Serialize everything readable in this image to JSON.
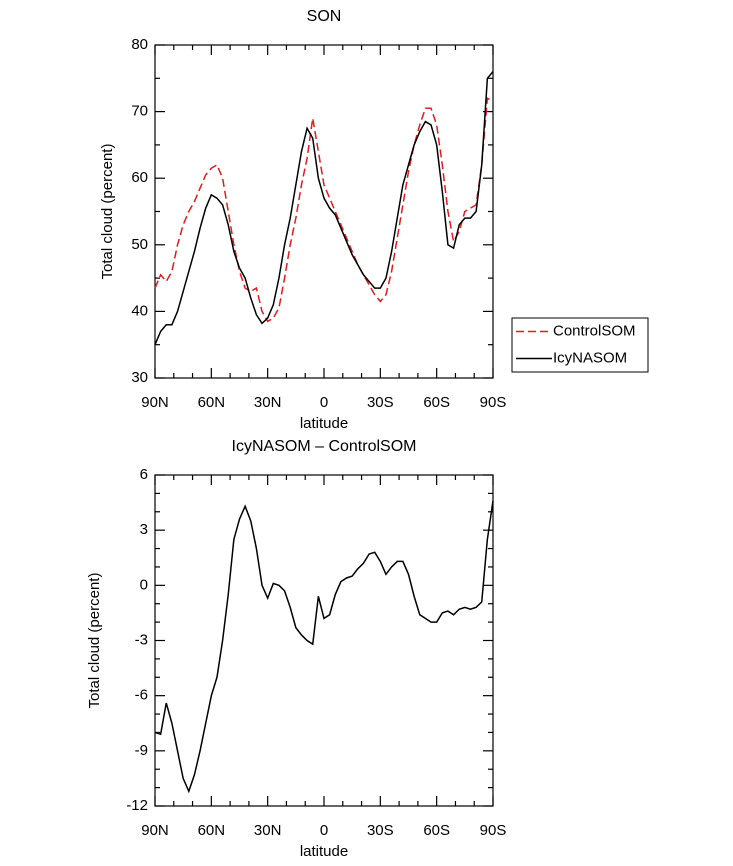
{
  "chart_data": [
    {
      "type": "line",
      "title": "SON",
      "xlabel": "latitude",
      "ylabel": "Total cloud (percent)",
      "x": [
        90,
        87,
        84,
        81,
        78,
        75,
        72,
        69,
        66,
        63,
        60,
        57,
        54,
        51,
        48,
        45,
        42,
        39,
        36,
        33,
        30,
        27,
        24,
        21,
        18,
        15,
        12,
        9,
        6,
        3,
        0,
        -3,
        -6,
        -9,
        -12,
        -15,
        -18,
        -21,
        -24,
        -27,
        -30,
        -33,
        -36,
        -39,
        -42,
        -45,
        -48,
        -51,
        -54,
        -57,
        -60,
        -63,
        -66,
        -69,
        -72,
        -75,
        -78,
        -81,
        -84,
        -87,
        -90
      ],
      "xlim": [
        90,
        -90
      ],
      "xticks": [
        {
          "value": 90,
          "label": "90N"
        },
        {
          "value": 60,
          "label": "60N"
        },
        {
          "value": 30,
          "label": "30N"
        },
        0,
        {
          "value": -30,
          "label": "30S"
        },
        {
          "value": -60,
          "label": "60S"
        },
        {
          "value": -90,
          "label": "90S"
        }
      ],
      "ylim": [
        30,
        80
      ],
      "yticks": [
        30,
        40,
        50,
        60,
        70,
        80
      ],
      "legend": "right",
      "series": [
        {
          "name": "ControlSOM",
          "color": "#e41a1c",
          "dashed": true,
          "values": [
            43.5,
            45.5,
            44.5,
            46,
            50,
            53,
            55,
            56.5,
            58.5,
            60.5,
            61.5,
            62,
            60,
            55,
            50,
            46,
            43.5,
            43,
            43.5,
            40,
            38.5,
            39,
            40.5,
            45,
            50,
            54,
            59,
            63,
            69,
            64,
            59,
            57,
            55,
            53,
            51,
            49,
            47,
            45.5,
            44,
            42.5,
            41.5,
            42.5,
            46,
            51,
            56,
            61,
            65,
            68,
            70.5,
            70.5,
            68,
            62,
            55,
            50.5,
            52,
            55,
            55.5,
            56,
            62,
            72,
            71.5
          ]
        },
        {
          "name": "IcyNASOM",
          "color": "#000000",
          "dashed": false,
          "values": [
            35,
            37,
            38,
            38,
            40,
            43,
            46,
            49,
            52.5,
            55.5,
            57.5,
            57,
            56,
            53,
            49,
            46.5,
            45,
            42,
            39.5,
            38.2,
            39,
            41,
            45,
            50,
            54,
            59,
            64,
            67.5,
            66,
            60,
            57,
            55.5,
            54.5,
            52.5,
            50.5,
            48.5,
            47,
            45.5,
            44.5,
            43.5,
            43.5,
            45,
            49,
            54,
            59,
            62,
            65,
            67,
            68.5,
            68,
            65,
            58,
            50,
            49.5,
            53,
            54,
            54,
            55,
            62,
            75,
            76
          ]
        }
      ]
    },
    {
      "type": "line",
      "title": "IcyNASOM – ControlSOM",
      "xlabel": "latitude",
      "ylabel": "Total cloud (percent)",
      "x": [
        90,
        87,
        84,
        81,
        78,
        75,
        72,
        69,
        66,
        63,
        60,
        57,
        54,
        51,
        48,
        45,
        42,
        39,
        36,
        33,
        30,
        27,
        24,
        21,
        18,
        15,
        12,
        9,
        6,
        3,
        0,
        -3,
        -6,
        -9,
        -12,
        -15,
        -18,
        -21,
        -24,
        -27,
        -30,
        -33,
        -36,
        -39,
        -42,
        -45,
        -48,
        -51,
        -54,
        -57,
        -60,
        -63,
        -66,
        -69,
        -72,
        -75,
        -78,
        -81,
        -84,
        -87,
        -90
      ],
      "xlim": [
        90,
        -90
      ],
      "xticks": [
        {
          "value": 90,
          "label": "90N"
        },
        {
          "value": 60,
          "label": "60N"
        },
        {
          "value": 30,
          "label": "30N"
        },
        0,
        {
          "value": -30,
          "label": "30S"
        },
        {
          "value": -60,
          "label": "60S"
        },
        {
          "value": -90,
          "label": "90S"
        }
      ],
      "ylim": [
        -12,
        6
      ],
      "yticks": [
        -12,
        -9,
        -6,
        -3,
        0,
        3,
        6
      ],
      "series": [
        {
          "color": "#000000",
          "dashed": false,
          "values": [
            -8,
            -8.1,
            -6.4,
            -7.5,
            -9,
            -10.5,
            -11.2,
            -10.3,
            -9,
            -7.5,
            -6,
            -5,
            -3,
            -0.5,
            2.5,
            3.6,
            4.3,
            3.5,
            2,
            0,
            -0.7,
            0.1,
            0,
            -0.3,
            -1.2,
            -2.3,
            -2.7,
            -3,
            -3.2,
            -0.6,
            -1.8,
            -1.6,
            -0.5,
            0.2,
            0.4,
            0.5,
            0.9,
            1.2,
            1.7,
            1.8,
            1.3,
            0.6,
            1,
            1.3,
            1.3,
            0.6,
            -0.6,
            -1.6,
            -1.8,
            -2,
            -2,
            -1.5,
            -1.4,
            -1.6,
            -1.3,
            -1.2,
            -1.3,
            -1.2,
            -0.9,
            2.5,
            4.6
          ]
        }
      ]
    }
  ]
}
